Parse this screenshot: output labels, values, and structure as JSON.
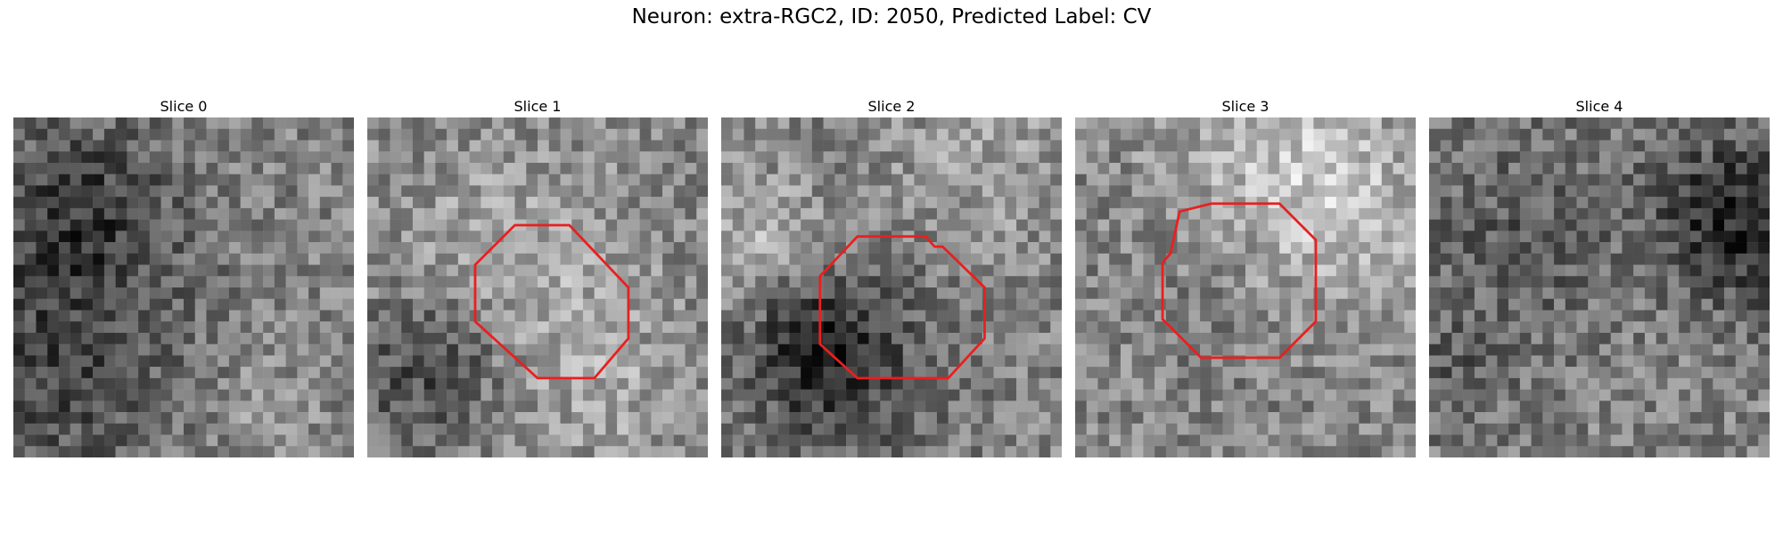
{
  "figure": {
    "title": "Neuron: extra-RGC2, ID: 2050, Predicted Label: CV",
    "contour_color": "#e8201f",
    "colormap": "gray",
    "slices": [
      {
        "title": "Slice 0",
        "has_contour": false,
        "noise_seed": 11
      },
      {
        "title": "Slice 1",
        "has_contour": true,
        "noise_seed": 23
      },
      {
        "title": "Slice 2",
        "has_contour": true,
        "noise_seed": 37
      },
      {
        "title": "Slice 3",
        "has_contour": true,
        "noise_seed": 51
      },
      {
        "title": "Slice 4",
        "has_contour": false,
        "noise_seed": 67
      }
    ]
  }
}
